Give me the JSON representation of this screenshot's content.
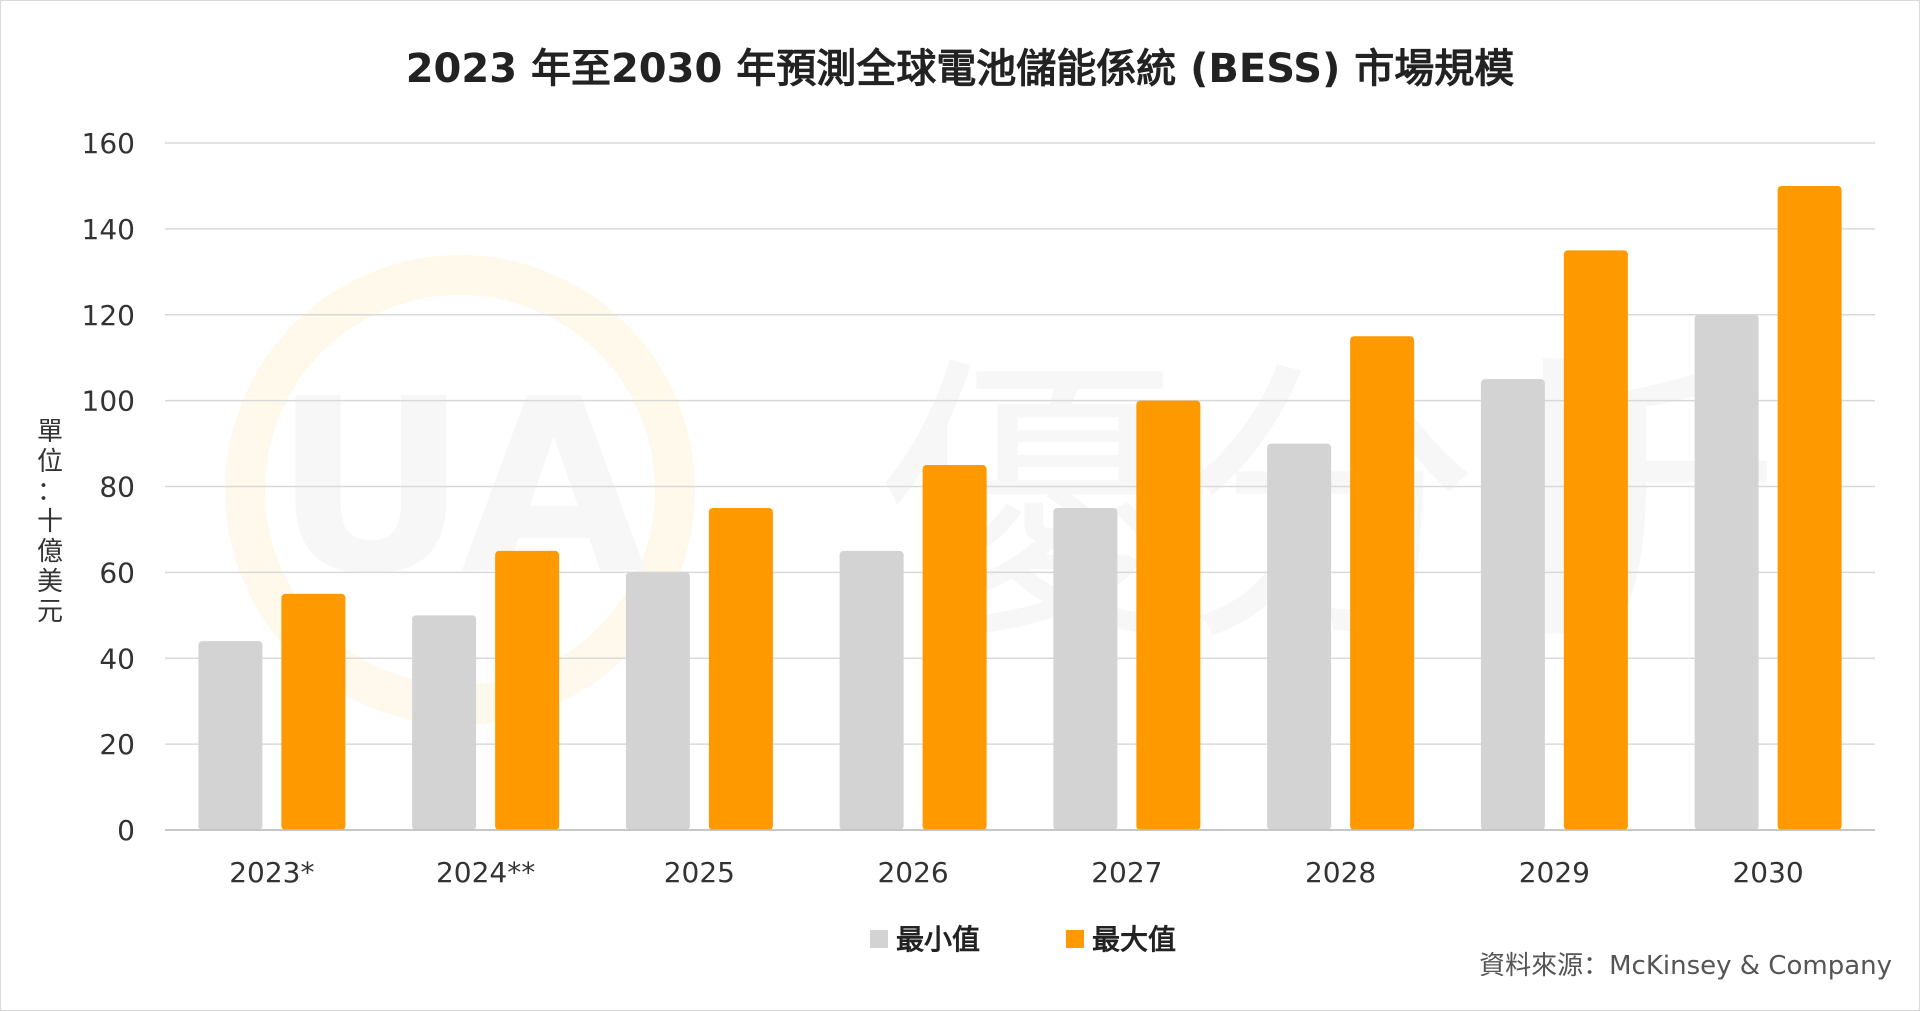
{
  "chart_data": {
    "type": "bar",
    "title": "2023 年至2030 年預測全球電池儲能係統 (BESS) 市場規模",
    "ylabel": "單位：十億美元",
    "xlabel": "",
    "categories": [
      "2023*",
      "2024**",
      "2025",
      "2026",
      "2027",
      "2028",
      "2029",
      "2030"
    ],
    "series": [
      {
        "name": "最小值",
        "color": "#d3d3d3",
        "values": [
          44,
          50,
          60,
          65,
          75,
          90,
          105,
          120
        ]
      },
      {
        "name": "最大值",
        "color": "#ff9900",
        "values": [
          55,
          65,
          75,
          85,
          100,
          115,
          135,
          150
        ]
      }
    ],
    "ylim": [
      0,
      160
    ],
    "yticks": [
      0,
      20,
      40,
      60,
      80,
      100,
      120,
      140,
      160
    ],
    "grid": true,
    "legend_position": "bottom-center"
  },
  "source_text": "資料來源：McKinsey & Company",
  "watermark": {
    "logo_text": "UA",
    "text": "優分析"
  }
}
